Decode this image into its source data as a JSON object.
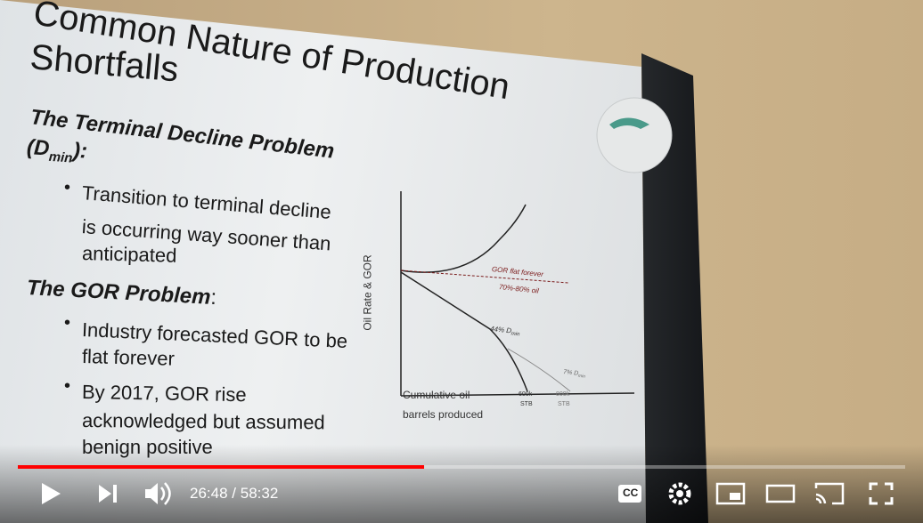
{
  "slide": {
    "title_lines": [
      "Common Nature of Production",
      "Shortfalls"
    ],
    "sections": [
      {
        "heading_lines": [
          "The Terminal Decline Problem",
          "(D"
        ],
        "heading_sub": "min",
        "heading_end": "):",
        "bullets": [
          [
            "Transition to terminal decline",
            "is occurring way sooner than",
            "anticipated"
          ]
        ]
      },
      {
        "heading_lines": [
          "The GOR Problem"
        ],
        "heading_end": ":",
        "bullets": [
          [
            "Industry forecasted GOR to be",
            "flat forever"
          ],
          [
            "By 2017, GOR rise",
            "acknowledged but assumed",
            "benign positive"
          ]
        ]
      }
    ],
    "diagram": {
      "y_label": "Oil Rate & GOR",
      "x_label_lines": [
        "Cumulative oil",
        "barrels produced"
      ],
      "annotations": [
        "GOR flat forever",
        "70%-80% oil"
      ],
      "decline_a": "44% D",
      "decline_b": "7% D",
      "decline_sub": "min",
      "x_marks": [
        [
          "600k",
          "STB"
        ],
        [
          "800k",
          "STB"
        ]
      ]
    }
  },
  "player": {
    "current_time": "26:48",
    "separator": "/",
    "duration": "58:32"
  }
}
